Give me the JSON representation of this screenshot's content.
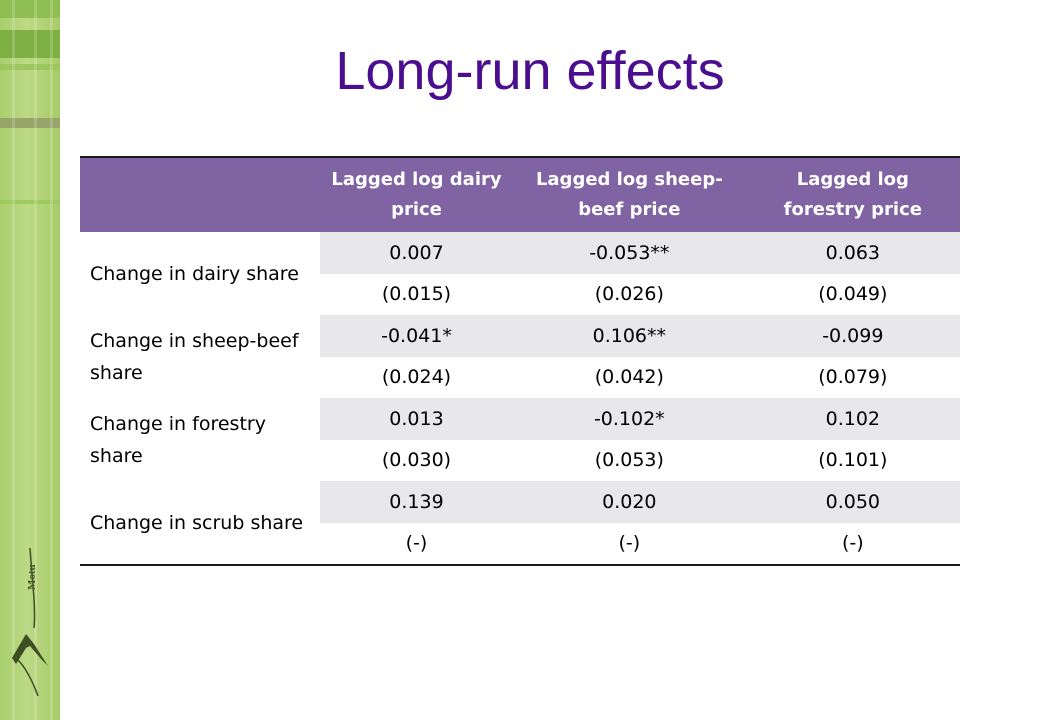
{
  "slide": {
    "title": "Long-run effects",
    "logo_text": "Motu"
  },
  "colors": {
    "title": "#4a0e8f",
    "header_bg": "#7f63a3",
    "header_text": "#ffffff",
    "shaded_row": "#e8e8ea",
    "side_bar": "#a9cf6c"
  },
  "table": {
    "columns": [
      "",
      "Lagged log dairy price",
      "Lagged log sheep-beef price",
      "Lagged log forestry price"
    ],
    "rows": [
      {
        "label": "Change in dairy share",
        "estimates": [
          "0.007",
          "-0.053**",
          "0.063"
        ],
        "std_errors": [
          "(0.015)",
          "(0.026)",
          "(0.049)"
        ]
      },
      {
        "label": "Change in sheep-beef share",
        "estimates": [
          "-0.041*",
          "0.106**",
          "-0.099"
        ],
        "std_errors": [
          "(0.024)",
          "(0.042)",
          "(0.079)"
        ]
      },
      {
        "label": "Change in forestry share",
        "estimates": [
          "0.013",
          "-0.102*",
          "0.102"
        ],
        "std_errors": [
          "(0.030)",
          "(0.053)",
          "(0.101)"
        ]
      },
      {
        "label": "Change in scrub share",
        "estimates": [
          "0.139",
          "0.020",
          "0.050"
        ],
        "std_errors": [
          "(-)",
          "(-)",
          "(-)"
        ]
      }
    ]
  }
}
